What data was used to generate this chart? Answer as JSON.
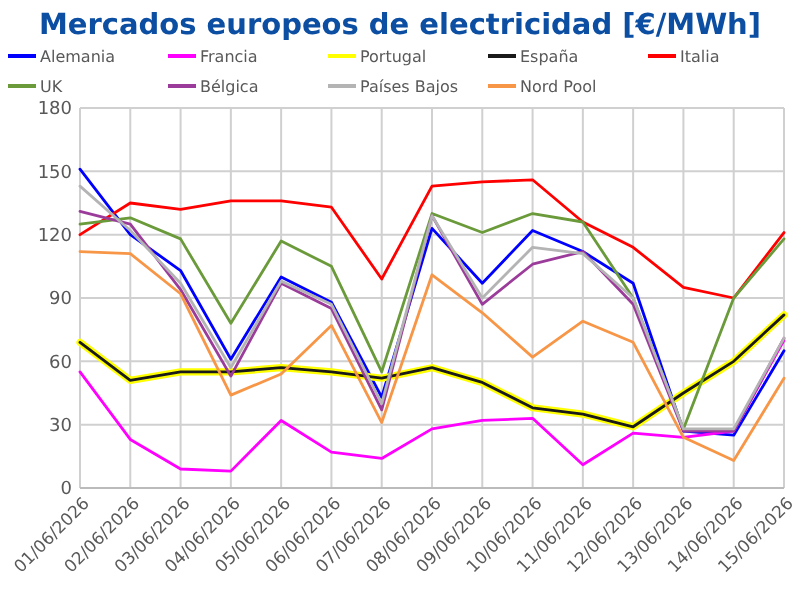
{
  "chart_data": {
    "type": "line",
    "title": "Mercados europeos de electricidad [€/MWh]",
    "categories": [
      "01/06/2026",
      "02/06/2026",
      "03/06/2026",
      "04/06/2026",
      "05/06/2026",
      "06/06/2026",
      "07/06/2026",
      "08/06/2026",
      "09/06/2026",
      "10/06/2026",
      "11/06/2026",
      "12/06/2026",
      "13/06/2026",
      "14/06/2026",
      "15/06/2026"
    ],
    "ylim": [
      0,
      180
    ],
    "yticks": [
      0,
      30,
      60,
      90,
      120,
      150,
      180
    ],
    "grid": true,
    "legend": "top",
    "marker": "none",
    "line_style": "solid",
    "series": [
      {
        "name": "Alemania",
        "color": "#0000ff",
        "values": [
          151,
          120,
          103,
          61,
          100,
          88,
          43,
          123,
          97,
          122,
          112,
          97,
          27,
          25,
          65
        ]
      },
      {
        "name": "Francia",
        "color": "#ff00ff",
        "values": [
          55,
          23,
          9,
          8,
          32,
          17,
          14,
          28,
          32,
          33,
          11,
          26,
          24,
          27,
          70
        ]
      },
      {
        "name": "Portugal",
        "color": "#ffff00",
        "values": [
          69,
          51,
          55,
          55,
          57,
          55,
          52,
          57,
          50,
          38,
          35,
          29,
          45,
          60,
          82
        ]
      },
      {
        "name": "España",
        "color": "#1a1a1a",
        "values": [
          69,
          51,
          55,
          55,
          57,
          55,
          52,
          57,
          50,
          38,
          35,
          29,
          45,
          60,
          82
        ]
      },
      {
        "name": "Italia",
        "color": "#ff0000",
        "values": [
          120,
          135,
          132,
          136,
          136,
          133,
          99,
          143,
          145,
          146,
          126,
          114,
          95,
          90,
          121
        ]
      },
      {
        "name": "UK",
        "color": "#6a9a3a",
        "values": [
          125,
          128,
          118,
          78,
          117,
          105,
          55,
          130,
          121,
          130,
          126,
          90,
          28,
          90,
          118
        ]
      },
      {
        "name": "Bélgica",
        "color": "#9b3c9b",
        "values": [
          131,
          125,
          94,
          53,
          97,
          85,
          37,
          129,
          87,
          106,
          112,
          87,
          27,
          27,
          71
        ]
      },
      {
        "name": "Países Bajos",
        "color": "#b4b4b4",
        "values": [
          143,
          122,
          97,
          57,
          98,
          87,
          40,
          129,
          90,
          114,
          111,
          90,
          28,
          28,
          71
        ]
      },
      {
        "name": "Nord Pool",
        "color": "#f79646",
        "values": [
          112,
          111,
          92,
          44,
          54,
          77,
          31,
          101,
          83,
          62,
          79,
          69,
          24,
          13,
          52
        ]
      }
    ]
  }
}
